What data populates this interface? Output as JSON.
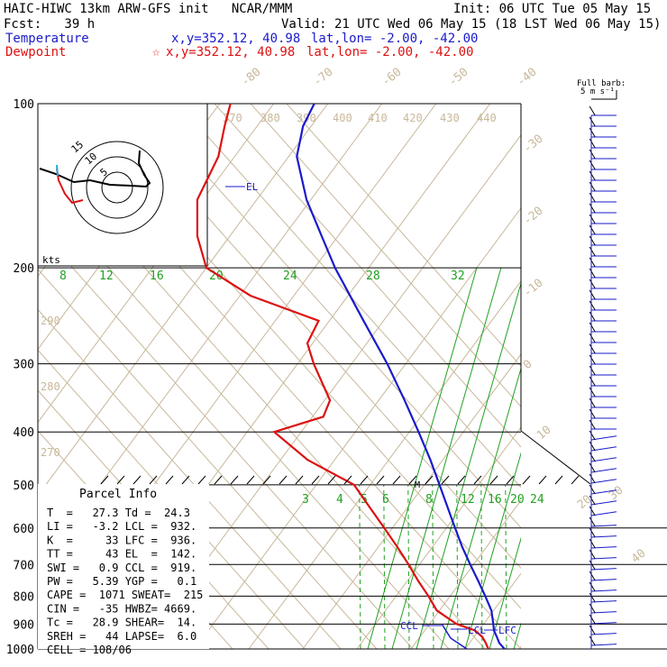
{
  "header": {
    "model": "HAIC-HIWC 13km ARW-GFS init   NCAR/MMM",
    "init": "Init: 06 UTC Tue 05 May 15",
    "fcst": "Fcst:   39 h",
    "valid": "Valid: 21 UTC Wed 06 May 15 (18 LST Wed 06 May 15)",
    "temp_label": "Temperature",
    "temp_xy": "x,y=352.12, 40.98",
    "temp_latlon": "lat,lon= -2.00, -42.00",
    "dew_label": "Dewpoint",
    "dew_marker": "☆",
    "dew_xy": "x,y=352.12, 40.98",
    "dew_latlon": "lat,lon= -2.00, -42.00"
  },
  "colors": {
    "temperature": "#1a1acc",
    "dewpoint": "#dd1111",
    "isotherm": "#c8b89a",
    "mixing_ratio": "#22a022",
    "grid": "#000000"
  },
  "barb_label": [
    "Full barb:",
    "5 m s⁻¹"
  ],
  "hodograph": {
    "units": "kts",
    "rings": [
      "5",
      "10",
      "15"
    ]
  },
  "parcel_info": {
    "title": "Parcel Info",
    "rows": [
      "T  =   27.3 Td =  24.3",
      "LI =   -3.2 LCL =  932.",
      "K  =     33 LFC =  936.",
      "TT =     43 EL  =  142.",
      "SWI =   0.9 CCL =  919.",
      "PW =   5.39 YGP =   0.1",
      "CAPE =  1071 SWEAT=  215",
      "CIN =   -35 HWBZ= 4669.",
      "Tc =   28.9 SHEAR=  14.",
      "SREH =   44 LAPSE=  6.0",
      "CELL = 108/06"
    ]
  },
  "chart_data": {
    "type": "line",
    "title": "",
    "y_axis": "Pressure (hPa)",
    "y_ticks": [
      "100",
      "200",
      "300",
      "400",
      "500",
      "600",
      "700",
      "800",
      "900",
      "1000"
    ],
    "ylim": [
      1000,
      100
    ],
    "isotherm_labels": [
      "-80",
      "-70",
      "-60",
      "-50",
      "-40",
      "-30",
      "-20",
      "-10",
      "0",
      "10",
      "20",
      "30",
      "40"
    ],
    "theta_labels": [
      "370",
      "380",
      "390",
      "400",
      "410",
      "420",
      "430",
      "440",
      "290",
      "280",
      "270"
    ],
    "mixing_ratio_labels": [
      "8",
      "12",
      "16",
      "20",
      "24",
      "28",
      "32",
      "2",
      "3",
      "4",
      "5",
      "6",
      "8",
      "12",
      "16",
      "20",
      "24"
    ],
    "level_labels": [
      "EL",
      "CCL",
      "LCL",
      "LFC"
    ],
    "series": [
      {
        "name": "Temperature",
        "p": [
          1000,
          975,
          950,
          925,
          900,
          850,
          800,
          750,
          700,
          650,
          600,
          550,
          500,
          450,
          400,
          350,
          300,
          250,
          200,
          175,
          150,
          125,
          110,
          100
        ],
        "t": [
          27.3,
          25.5,
          24.2,
          22.8,
          21.8,
          19.6,
          16.5,
          13.1,
          9.4,
          5.5,
          1.6,
          -2.6,
          -7.2,
          -12.3,
          -18.3,
          -25.2,
          -33.4,
          -43.7,
          -56.2,
          -63.0,
          -70.8,
          -78.5,
          -81.5,
          -82.5
        ]
      },
      {
        "name": "Dewpoint",
        "p": [
          1000,
          975,
          950,
          925,
          900,
          850,
          800,
          750,
          700,
          650,
          600,
          550,
          500,
          450,
          400,
          375,
          350,
          300,
          275,
          250,
          225,
          200,
          175,
          150,
          125,
          110,
          100
        ],
        "td": [
          24.3,
          23.0,
          21.5,
          19.3,
          15.0,
          9.5,
          6.0,
          2.0,
          -2.0,
          -6.5,
          -11.5,
          -17.0,
          -23.0,
          -35.0,
          -45.0,
          -38.0,
          -39.0,
          -47.0,
          -51.0,
          -52.0,
          -68.0,
          -80.0,
          -86.0,
          -91.0,
          -93.0,
          -96.0,
          -98.0
        ]
      }
    ],
    "wind_barbs": "right edge column, 100-1000 hPa"
  }
}
